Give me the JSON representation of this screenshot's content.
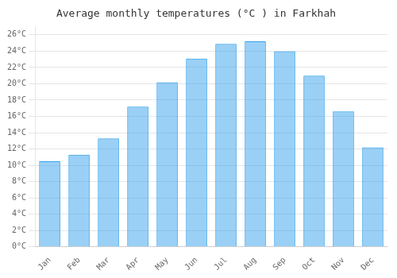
{
  "chart_data": {
    "type": "bar",
    "title": "Average monthly temperatures (°C ) in Farkhah",
    "categories": [
      "Jan",
      "Feb",
      "Mar",
      "Apr",
      "May",
      "Jun",
      "Jul",
      "Aug",
      "Sep",
      "Oct",
      "Nov",
      "Dec"
    ],
    "values": [
      10.5,
      11.3,
      13.3,
      17.2,
      20.2,
      23.1,
      24.9,
      25.2,
      24.0,
      21.0,
      16.6,
      12.2
    ],
    "ylim": [
      0,
      27
    ],
    "yticks": [
      {
        "value": 0,
        "label": "0°C"
      },
      {
        "value": 2,
        "label": "2°C"
      },
      {
        "value": 4,
        "label": "4°C"
      },
      {
        "value": 6,
        "label": "6°C"
      },
      {
        "value": 8,
        "label": "8°C"
      },
      {
        "value": 10,
        "label": "10°C"
      },
      {
        "value": 12,
        "label": "12°C"
      },
      {
        "value": 14,
        "label": "14°C"
      },
      {
        "value": 16,
        "label": "16°C"
      },
      {
        "value": 18,
        "label": "18°C"
      },
      {
        "value": 20,
        "label": "20°C"
      },
      {
        "value": 22,
        "label": "22°C"
      },
      {
        "value": 24,
        "label": "24°C"
      },
      {
        "value": 26,
        "label": "26°C"
      }
    ],
    "grid": true
  }
}
